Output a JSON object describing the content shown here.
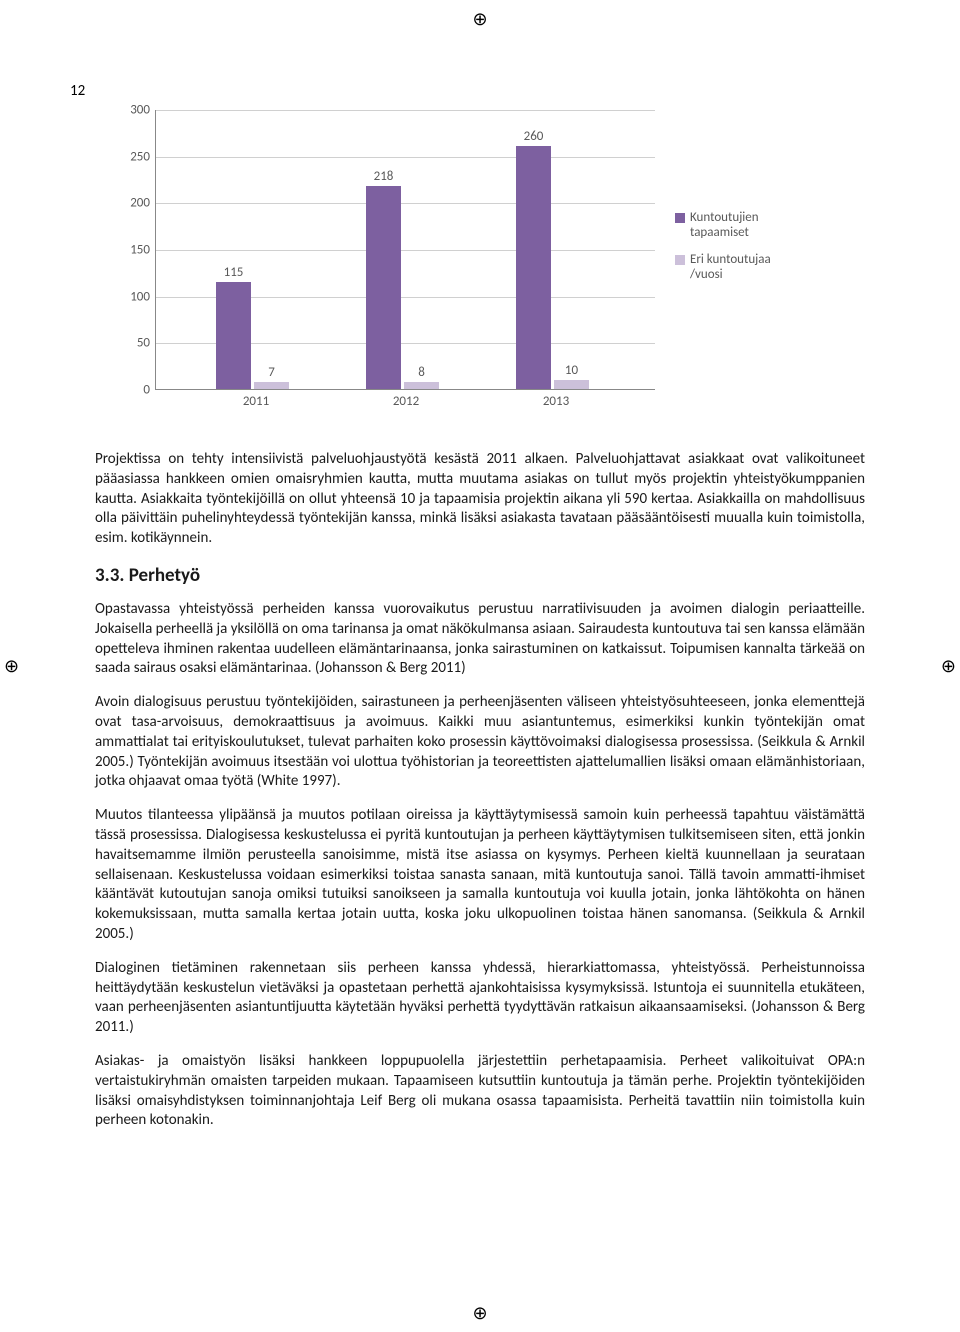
{
  "page_number": "12",
  "registration_mark": "⊕",
  "chart": {
    "type": "bar",
    "categories": [
      "2011",
      "2012",
      "2013"
    ],
    "series": [
      {
        "name": "Kuntoutujien tapaamiset",
        "values": [
          115,
          218,
          260
        ],
        "color": "#7d60a0"
      },
      {
        "name": "Eri kuntoutujaa /vuosi",
        "values": [
          7,
          8,
          10
        ],
        "color": "#ccc0da"
      }
    ],
    "ylim": [
      0,
      300
    ],
    "ytick_step": 50,
    "yticks": [
      "0",
      "50",
      "100",
      "150",
      "200",
      "250",
      "300"
    ],
    "grid_color": "#d0d0d0",
    "axis_color": "#888888",
    "background_color": "#ffffff",
    "label_fontsize": 13
  },
  "paragraphs": {
    "p1": "Projektissa on tehty intensiivistä palveluohjaustyötä kesästä 2011 alkaen. Palveluohjattavat asiakkaat ovat valikoituneet pääasiassa hankkeen omien omaisryhmien kautta, mutta muutama asiakas on tullut myös projektin yhteistyökumppanien kautta. Asiakkaita työntekijöillä on ollut yhteensä 10 ja tapaamisia projektin aikana yli 590 kertaa. Asiakkailla on mahdollisuus olla päivittäin puhelinyhteydessä työntekijän kanssa, minkä lisäksi asiakasta tavataan pääsääntöisesti muualla kuin toimistolla, esim. kotikäynnein.",
    "heading": "3.3. Perhetyö",
    "p2": "Opastavassa yhteistyössä perheiden kanssa vuorovaikutus perustuu narratiivisuuden ja avoimen dialogin periaatteille. Jokaisella perheellä ja yksilöllä on oma tarinansa ja omat näkökulmansa asiaan. Sairaudesta kuntoutuva tai sen kanssa elämään opetteleva ihminen rakentaa uudelleen elämäntarinaansa, jonka sairastuminen on katkaissut. Toipumisen kannalta tärkeää on saada sairaus osaksi elämäntarinaa. (Johansson & Berg 2011)",
    "p3": "Avoin dialogisuus perustuu työntekijöiden, sairastuneen ja perheenjäsenten väliseen yhteistyösuhteeseen, jonka elementtejä ovat tasa-arvoisuus, demokraattisuus ja avoimuus. Kaikki muu asiantuntemus, esimerkiksi kunkin työntekijän omat ammattialat tai erityiskoulutukset, tulevat parhaiten koko prosessin käyttövoimaksi dialogisessa prosessissa. (Seikkula & Arnkil 2005.) Työntekijän avoimuus itsestään voi ulottua työhistorian ja teoreettisten ajattelumallien lisäksi omaan elämänhistoriaan, jotka ohjaavat omaa työtä (White 1997).",
    "p4": "Muutos tilanteessa ylipäänsä ja muutos potilaan oireissa ja käyttäytymisessä samoin kuin perheessä tapahtuu väistämättä tässä prosessissa. Dialogisessa keskustelussa ei pyritä kuntoutujan ja perheen käyttäytymisen tulkitsemiseen siten, että jonkin havaitsemamme ilmiön perusteella sanoisimme, mistä itse asiassa on kysymys. Perheen kieltä kuunnellaan ja seurataan sellaisenaan. Keskustelussa voidaan esimerkiksi toistaa sanasta sanaan, mitä kuntoutuja sanoi. Tällä tavoin ammatti-ihmiset kääntävät kutoutujan sanoja omiksi tutuiksi sanoikseen ja samalla kuntoutuja voi kuulla jotain, jonka lähtökohta on hänen kokemuksissaan, mutta samalla kertaa jotain uutta, koska joku ulkopuolinen toistaa hänen sanomansa. (Seikkula & Arnkil 2005.)",
    "p5": "Dialoginen tietäminen rakennetaan siis perheen kanssa yhdessä, hierarkiattomassa, yhteistyössä. Perheistunnoissa heittäydytään keskustelun vietäväksi ja opastetaan perhettä ajankohtaisissa kysymyksissä. Istuntoja ei suunnitella etukäteen, vaan perheenjäsenten asiantuntijuutta käytetään hyväksi perhettä tyydyttävän ratkaisun aikaansaamiseksi. (Johansson & Berg 2011.)",
    "p6": "Asiakas- ja omaistyön lisäksi hankkeen loppupuolella järjestettiin perhetapaamisia. Perheet valikoituivat OPA:n vertaistukiryhmän omaisten tarpeiden mukaan. Tapaamiseen kutsuttiin kuntoutuja ja tämän perhe. Projektin työntekijöiden lisäksi omaisyhdistyksen toiminnanjohtaja Leif Berg oli mukana osassa tapaamisista. Perheitä tavattiin niin toimistolla kuin perheen kotonakin."
  }
}
